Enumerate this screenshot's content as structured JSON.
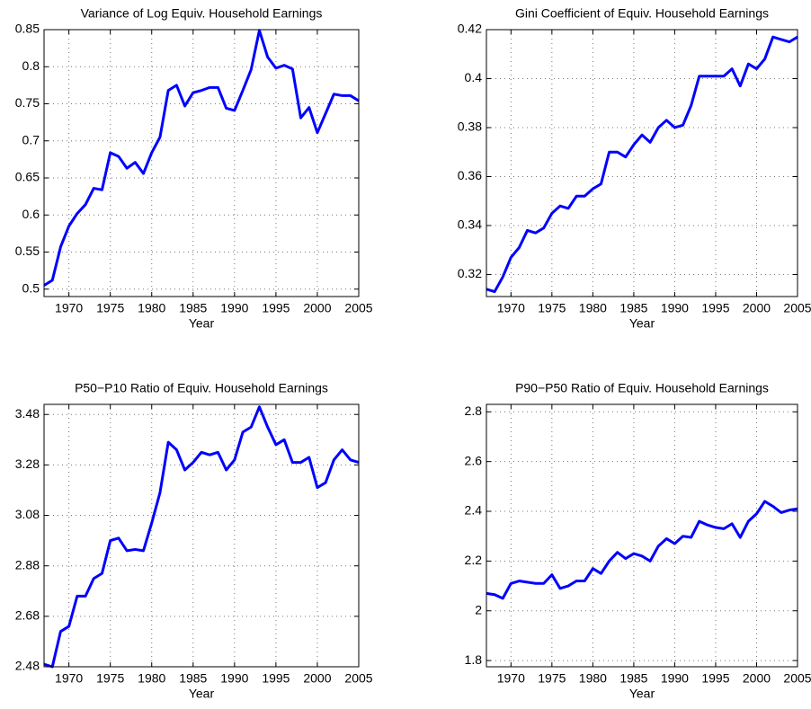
{
  "chart_data": [
    {
      "type": "line",
      "title": "Variance of Log Equiv. Household Earnings",
      "xlabel": "Year",
      "x": [
        1967,
        1968,
        1969,
        1970,
        1971,
        1972,
        1973,
        1974,
        1975,
        1976,
        1977,
        1978,
        1979,
        1980,
        1981,
        1982,
        1983,
        1984,
        1985,
        1986,
        1987,
        1988,
        1989,
        1990,
        1991,
        1992,
        1993,
        1994,
        1995,
        1996,
        1997,
        1998,
        1999,
        2000,
        2001,
        2002,
        2003,
        2004,
        2005
      ],
      "values": [
        0.505,
        0.512,
        0.557,
        0.585,
        0.602,
        0.614,
        0.636,
        0.634,
        0.684,
        0.679,
        0.663,
        0.671,
        0.656,
        0.684,
        0.705,
        0.768,
        0.775,
        0.747,
        0.765,
        0.768,
        0.772,
        0.772,
        0.744,
        0.741,
        0.768,
        0.796,
        0.849,
        0.813,
        0.798,
        0.802,
        0.797,
        0.731,
        0.745,
        0.711,
        0.737,
        0.763,
        0.761,
        0.761,
        0.754
      ],
      "color": "#0000ff",
      "xlim": [
        1967,
        2005
      ],
      "xticks": [
        1970,
        1975,
        1980,
        1985,
        1990,
        1995,
        2000,
        2005
      ],
      "ylim": [
        0.49,
        0.85
      ],
      "yticks": [
        0.5,
        0.55,
        0.6,
        0.65,
        0.7,
        0.75,
        0.8,
        0.85
      ],
      "grid": true
    },
    {
      "type": "line",
      "title": "Gini Coefficient of Equiv. Household Earnings",
      "xlabel": "Year",
      "x": [
        1967,
        1968,
        1969,
        1970,
        1971,
        1972,
        1973,
        1974,
        1975,
        1976,
        1977,
        1978,
        1979,
        1980,
        1981,
        1982,
        1983,
        1984,
        1985,
        1986,
        1987,
        1988,
        1989,
        1990,
        1991,
        1992,
        1993,
        1994,
        1995,
        1996,
        1997,
        1998,
        1999,
        2000,
        2001,
        2002,
        2003,
        2004,
        2005
      ],
      "values": [
        0.314,
        0.313,
        0.319,
        0.327,
        0.331,
        0.338,
        0.337,
        0.339,
        0.345,
        0.348,
        0.347,
        0.352,
        0.352,
        0.355,
        0.357,
        0.37,
        0.37,
        0.368,
        0.373,
        0.377,
        0.374,
        0.38,
        0.383,
        0.38,
        0.381,
        0.389,
        0.401,
        0.401,
        0.401,
        0.401,
        0.404,
        0.397,
        0.406,
        0.404,
        0.408,
        0.417,
        0.416,
        0.415,
        0.417
      ],
      "color": "#0000ff",
      "xlim": [
        1967,
        2005
      ],
      "xticks": [
        1970,
        1975,
        1980,
        1985,
        1990,
        1995,
        2000,
        2005
      ],
      "ylim": [
        0.311,
        0.42
      ],
      "yticks": [
        0.32,
        0.34,
        0.36,
        0.38,
        0.4,
        0.42
      ],
      "grid": true
    },
    {
      "type": "line",
      "title": "P50−P10 Ratio of Equiv. Household Earnings",
      "xlabel": "Year",
      "x": [
        1967,
        1968,
        1969,
        1970,
        1971,
        1972,
        1973,
        1974,
        1975,
        1976,
        1977,
        1978,
        1979,
        1980,
        1981,
        1982,
        1983,
        1984,
        1985,
        1986,
        1987,
        1988,
        1989,
        1990,
        1991,
        1992,
        1993,
        1994,
        1995,
        1996,
        1997,
        1998,
        1999,
        2000,
        2001,
        2002,
        2003,
        2004,
        2005
      ],
      "values": [
        2.49,
        2.48,
        2.62,
        2.64,
        2.76,
        2.76,
        2.83,
        2.85,
        2.98,
        2.99,
        2.94,
        2.945,
        2.94,
        3.05,
        3.17,
        3.37,
        3.34,
        3.26,
        3.29,
        3.33,
        3.32,
        3.33,
        3.26,
        3.3,
        3.41,
        3.43,
        3.51,
        3.43,
        3.36,
        3.38,
        3.29,
        3.29,
        3.31,
        3.19,
        3.21,
        3.3,
        3.34,
        3.3,
        3.29
      ],
      "color": "#0000ff",
      "xlim": [
        1967,
        2005
      ],
      "xticks": [
        1970,
        1975,
        1980,
        1985,
        1990,
        1995,
        2000,
        2005
      ],
      "ylim": [
        2.48,
        3.52
      ],
      "yticks": [
        2.48,
        2.68,
        2.88,
        3.08,
        3.28,
        3.48
      ],
      "grid": true
    },
    {
      "type": "line",
      "title": "P90−P50 Ratio of Equiv. Household Earnings",
      "xlabel": "Year",
      "x": [
        1967,
        1968,
        1969,
        1970,
        1971,
        1972,
        1973,
        1974,
        1975,
        1976,
        1977,
        1978,
        1979,
        1980,
        1981,
        1982,
        1983,
        1984,
        1985,
        1986,
        1987,
        1988,
        1989,
        1990,
        1991,
        1992,
        1993,
        1994,
        1995,
        1996,
        1997,
        1998,
        1999,
        2000,
        2001,
        2002,
        2003,
        2004,
        2005
      ],
      "values": [
        2.07,
        2.065,
        2.05,
        2.11,
        2.12,
        2.115,
        2.11,
        2.11,
        2.145,
        2.09,
        2.1,
        2.12,
        2.12,
        2.17,
        2.15,
        2.2,
        2.235,
        2.21,
        2.23,
        2.22,
        2.2,
        2.26,
        2.29,
        2.27,
        2.3,
        2.295,
        2.36,
        2.345,
        2.335,
        2.33,
        2.35,
        2.295,
        2.36,
        2.39,
        2.44,
        2.42,
        2.395,
        2.405,
        2.41
      ],
      "color": "#0000ff",
      "xlim": [
        1967,
        2005
      ],
      "xticks": [
        1970,
        1975,
        1980,
        1985,
        1990,
        1995,
        2000,
        2005
      ],
      "ylim": [
        1.775,
        2.83
      ],
      "yticks": [
        1.8,
        2,
        2.2,
        2.4,
        2.6,
        2.8
      ],
      "grid": true
    }
  ]
}
